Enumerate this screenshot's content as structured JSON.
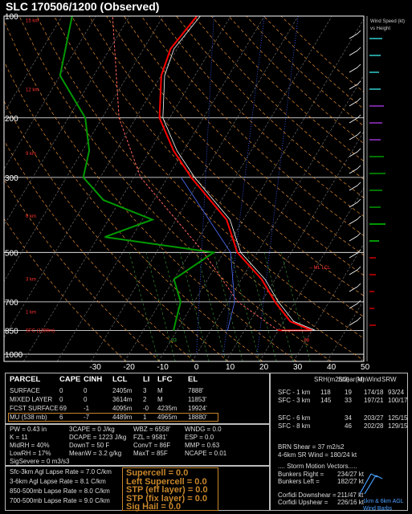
{
  "title": "SLC   170506/1200  (Observed)",
  "chart_data": {
    "type": "line",
    "pressure_ticks": [
      "100",
      "200",
      "300",
      "500",
      "700",
      "850",
      "1000"
    ],
    "pressure_values": [
      100,
      200,
      300,
      500,
      700,
      850,
      1000
    ],
    "temp_ticks": [
      "-30",
      "-20",
      "-10",
      "0",
      "10",
      "20",
      "30",
      "40",
      "50"
    ],
    "temp_values": [
      -30,
      -20,
      -10,
      0,
      10,
      20,
      30,
      40,
      50
    ],
    "height_labels": [
      "15 km",
      "12 km",
      "9 km",
      "6 km",
      "3 km",
      "1 km",
      "SFC (1289m)"
    ],
    "height_pressures": [
      103,
      165,
      255,
      390,
      600,
      750,
      850
    ],
    "temperature": [
      [
        850,
        20
      ],
      [
        850,
        30
      ],
      [
        800,
        22
      ],
      [
        700,
        14
      ],
      [
        600,
        6
      ],
      [
        500,
        -6
      ],
      [
        400,
        -15
      ],
      [
        300,
        -33
      ],
      [
        250,
        -43
      ],
      [
        200,
        -53
      ],
      [
        150,
        -60
      ],
      [
        125,
        -62
      ],
      [
        100,
        -60
      ]
    ],
    "dewpoint": [
      [
        850,
        -11
      ],
      [
        800,
        -12
      ],
      [
        700,
        -14
      ],
      [
        600,
        -20
      ],
      [
        500,
        -13
      ],
      [
        450,
        -48
      ],
      [
        400,
        -37
      ],
      [
        350,
        -55
      ],
      [
        300,
        -65
      ],
      [
        250,
        -68
      ],
      [
        200,
        -75
      ],
      [
        150,
        -90
      ],
      [
        100,
        -97
      ]
    ],
    "parcel": [
      [
        850,
        20
      ],
      [
        700,
        3
      ],
      [
        500,
        -16
      ],
      [
        300,
        -48
      ],
      [
        200,
        -65
      ],
      [
        100,
        -85
      ]
    ],
    "wetbulb_label": "33",
    "temp_label": "68",
    "lcl_label": "ML LCL",
    "wind_label_1": "Wind Speed (kt)",
    "wind_label_2": "vs Height",
    "legend": "1km & 6km AGL Wind Barbs",
    "colors": {
      "temperature": "#ff0000",
      "dewpoint": "#009900",
      "parcel": "#ff6060",
      "grid": "#ffffff"
    }
  },
  "table": {
    "headers": [
      "PARCEL",
      "CAPE",
      "CINH",
      "LCL",
      "LI",
      "LFC",
      "EL"
    ],
    "rows": [
      [
        "SURFACE",
        "0",
        "0",
        "2405m",
        "3",
        "M",
        "7888'"
      ],
      [
        "MIXED LAYER",
        "0",
        "0",
        "3614m",
        "2",
        "M",
        "11853'"
      ],
      [
        "FCST SURFACE",
        "69",
        "-1",
        "4095m",
        "-0",
        "4235m",
        "19924'"
      ],
      [
        "MU    (538 mb)",
        "6",
        "-7",
        "4489m",
        "1",
        "4965m",
        "18880'"
      ]
    ]
  },
  "indices_left": [
    "PW = 0.43 in",
    "K = 11",
    "MidRH = 40%",
    "LowRH = 17%",
    "SigSevere = 0 m3/s3"
  ],
  "indices_mid": [
    "3CAPE = 0 J/kg",
    "DCAPE = 1223 J/kg",
    "DownT = 50 F",
    "MeanW = 3.2 g/kg"
  ],
  "indices_right": [
    "WBZ = 6558'",
    "FZL = 9581'",
    "ConvT = 86F",
    "MaxT = 85F"
  ],
  "indices_far": [
    "WNDG = 0.0",
    "ESP = 0.0",
    "MMP = 0.63",
    "NCAPE = 0.01"
  ],
  "lapse": [
    "Sfc-3km Agl Lapse Rate = 7.0 C/km",
    "3-6km Agl Lapse Rate = 8.1 C/km",
    "850-500mb Lapse Rate = 8.0 C/km",
    "700-500mb Lapse Rate = 9.0 C/km"
  ],
  "params": [
    "Supercell = 0.0",
    "Left Supercell = 0.0",
    "STP (eff layer) = 0.0",
    "STP (fix layer) = 0.0",
    "Sig Hail = 0.0"
  ],
  "kin_headers": [
    "SRH(m2/s2)",
    "Shear(kt)",
    "MnWind",
    "SRW"
  ],
  "kin_rows": [
    [
      "SFC - 1 km",
      "118",
      "19",
      "174/18",
      "93/24"
    ],
    [
      "SFC - 3 km",
      "145",
      "33",
      "197/21",
      "100/17"
    ],
    [
      "SFC - 6 km",
      "",
      "34",
      "203/27",
      "125/15"
    ],
    [
      "SFC - 8 km",
      "",
      "46",
      "202/28",
      "129/15"
    ]
  ],
  "brn": [
    "BRN Shear = 37 m2/s2",
    "4-6km SR Wind = 180/24 kt"
  ],
  "storm_title": ".... Storm Motion Vectors.....",
  "storm": [
    [
      "Bunkers Right =",
      "234/27 kt"
    ],
    [
      "Bunkers Left =",
      "182/27 kt"
    ],
    [
      "Corfidi Downshear =",
      "211/47 kt"
    ],
    [
      "Corfidi Upshear =",
      "226/16 kt"
    ]
  ]
}
